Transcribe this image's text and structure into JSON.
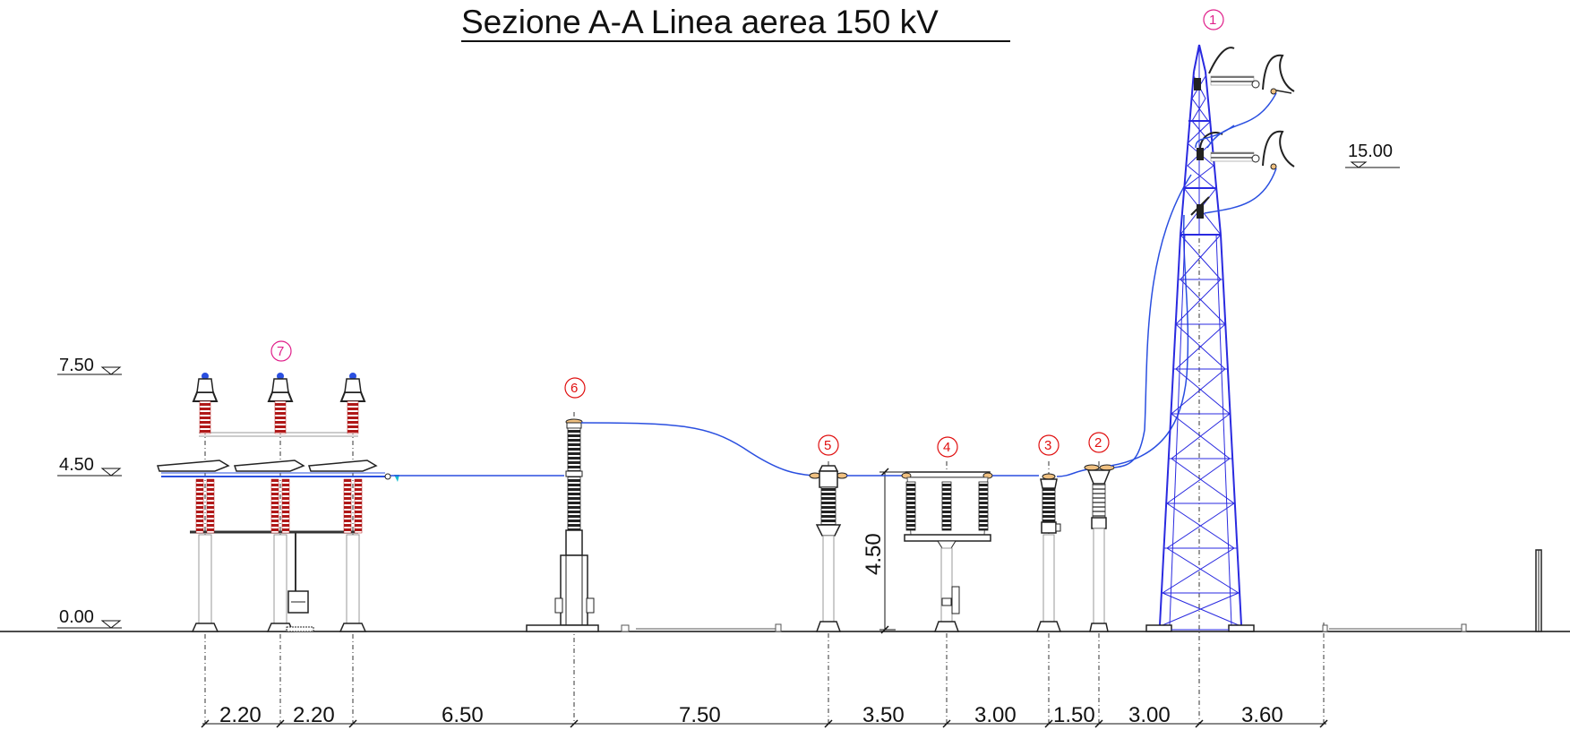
{
  "title": "Sezione A-A Linea aerea 150 kV",
  "levels": {
    "l0": "0.00",
    "l450": "4.50",
    "l750": "7.50",
    "l15": "15.00"
  },
  "vertical_dimension": "4.50",
  "dimensions": [
    "2.20",
    "2.20",
    "6.50",
    "7.50",
    "3.50",
    "3.00",
    "1.50",
    "3.00",
    "3.60"
  ],
  "markers": [
    "1",
    "2",
    "3",
    "4",
    "5",
    "6",
    "7"
  ],
  "colors": {
    "line": "#000000",
    "conductor": "#2a4fe0",
    "tower": "#2a2ae0",
    "insulator": "#b01818",
    "marker_pink": "#e0208a",
    "marker_red": "#e01010",
    "support": "#8a8a8a"
  }
}
